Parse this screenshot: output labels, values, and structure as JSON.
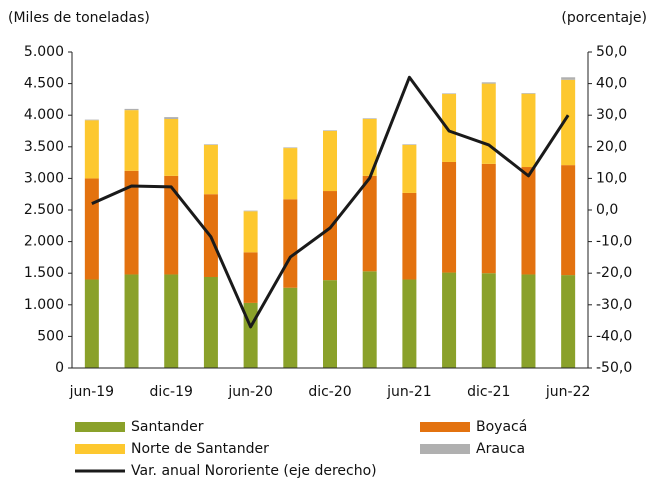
{
  "chart_data": {
    "type": "bar",
    "stacked": true,
    "ylabel": "(Miles de toneladas)",
    "y2label": "(porcentaje)",
    "categories": [
      "jun-19",
      null,
      "dic-19",
      null,
      "jun-20",
      null,
      "dic-20",
      null,
      "jun-21",
      null,
      "dic-21",
      null,
      "jun-22"
    ],
    "series": [
      {
        "name": "Santander",
        "color": "#8aa12a",
        "values": [
          1400,
          1480,
          1480,
          1440,
          1030,
          1270,
          1390,
          1530,
          1400,
          1510,
          1500,
          1480,
          1470
        ]
      },
      {
        "name": "Boyacá",
        "color": "#e3720f",
        "values": [
          1600,
          1640,
          1560,
          1310,
          800,
          1400,
          1410,
          1510,
          1370,
          1750,
          1730,
          1700,
          1740
        ]
      },
      {
        "name": "Norte de Santander",
        "color": "#fdc82f",
        "values": [
          920,
          960,
          900,
          780,
          650,
          810,
          950,
          900,
          760,
          1075,
          1270,
          1160,
          1350
        ]
      },
      {
        "name": "Arauca",
        "color": "#b0b0b0",
        "values": [
          10,
          20,
          30,
          10,
          10,
          10,
          10,
          10,
          10,
          10,
          20,
          10,
          40
        ]
      },
      {
        "name": "Var. anual Nororiente (eje derecho)",
        "color": "#1a1a1a",
        "type": "line",
        "axis": "y2",
        "values": [
          2,
          7.6,
          7.3,
          -8.5,
          -37,
          -14.9,
          -5.7,
          10.1,
          42,
          25,
          20.6,
          10.8,
          30
        ]
      }
    ],
    "ylim": [
      0,
      5000
    ],
    "yticks": [
      0,
      {
        "value": 500,
        "label": "500"
      },
      {
        "value": 1000,
        "label": "1.000"
      },
      {
        "value": 1500,
        "label": "1.500"
      },
      {
        "value": 2000,
        "label": "2.000"
      },
      {
        "value": 2500,
        "label": "2.500"
      },
      {
        "value": 3000,
        "label": "3.000"
      },
      {
        "value": 3500,
        "label": "3.500"
      },
      {
        "value": 4000,
        "label": "4.000"
      },
      {
        "value": 4500,
        "label": "4.500"
      },
      {
        "value": 5000,
        "label": "5.000"
      }
    ],
    "y2lim": [
      -50,
      50
    ],
    "y2ticks": [
      {
        "value": -50,
        "label": "-50,0"
      },
      {
        "value": -40,
        "label": "-40,0"
      },
      {
        "value": -30,
        "label": "-30,0"
      },
      {
        "value": -20,
        "label": "-20,0"
      },
      {
        "value": -10,
        "label": "-10,0"
      },
      {
        "value": 0,
        "label": "0,0"
      },
      {
        "value": 10,
        "label": "10,0"
      },
      {
        "value": 20,
        "label": "20,0"
      },
      {
        "value": 30,
        "label": "30,0"
      },
      {
        "value": 40,
        "label": "40,0"
      },
      {
        "value": 50,
        "label": "50,0"
      }
    ],
    "grid": false
  }
}
